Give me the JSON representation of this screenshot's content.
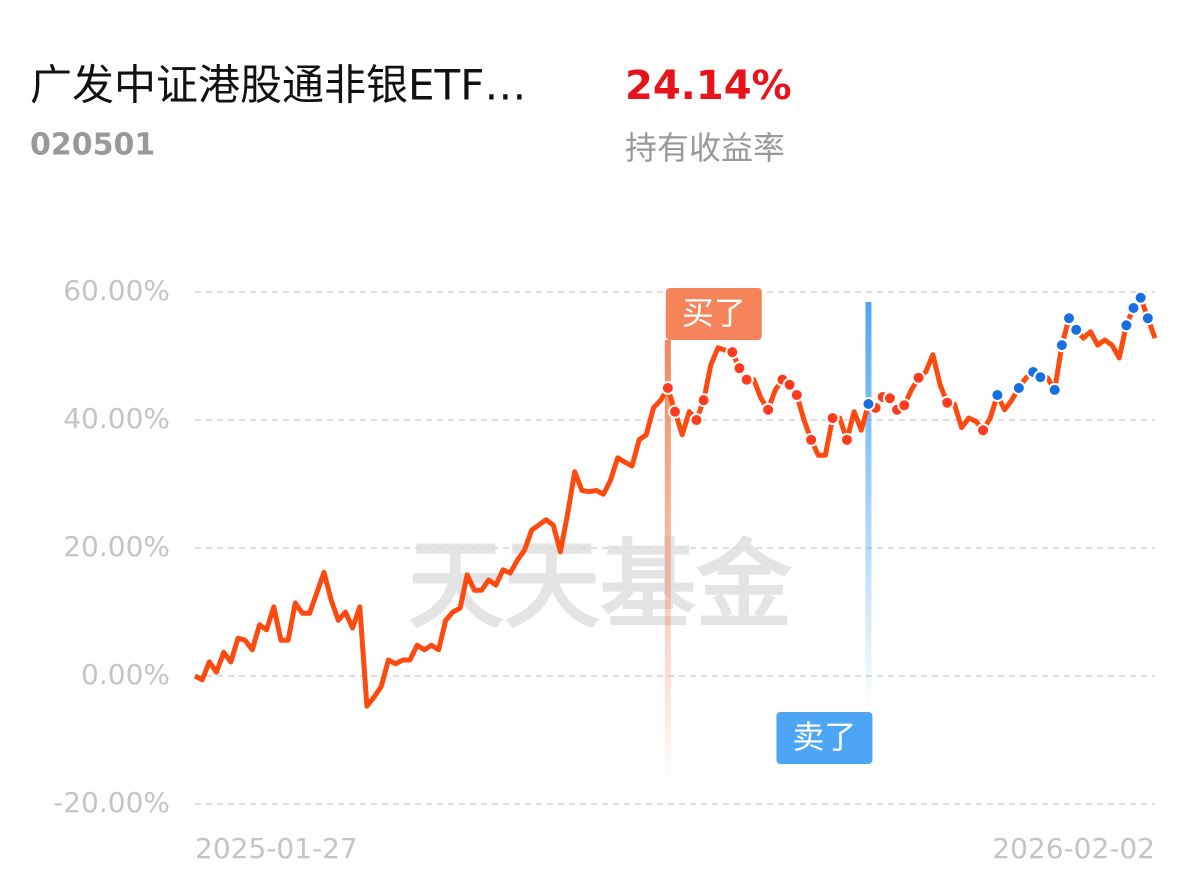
{
  "header": {
    "title": "广发中证港股通非银ETF…",
    "code": "020501",
    "return": "24.14%",
    "return_label": "持有收益率"
  },
  "chart_data": {
    "type": "line",
    "watermark": "天天基金",
    "categories": [
      "2025-01-27",
      null,
      null,
      null,
      null,
      null,
      null,
      null,
      null,
      null,
      null,
      null,
      null,
      null,
      null,
      null,
      null,
      null,
      null,
      null,
      null,
      null,
      null,
      null,
      null,
      null,
      null,
      null,
      null,
      null,
      null,
      null,
      null,
      null,
      null,
      null,
      null,
      null,
      null,
      null,
      null,
      null,
      null,
      null,
      null,
      null,
      null,
      null,
      null,
      null,
      null,
      null,
      null,
      null,
      null,
      null,
      null,
      null,
      null,
      null,
      null,
      null,
      null,
      null,
      null,
      null,
      null,
      null,
      null,
      null,
      null,
      null,
      null,
      null,
      null,
      null,
      null,
      null,
      null,
      null,
      null,
      null,
      null,
      null,
      null,
      null,
      null,
      null,
      null,
      null,
      null,
      null,
      null,
      null,
      null,
      null,
      null,
      null,
      null,
      null,
      null,
      null,
      null,
      null,
      null,
      null,
      null,
      null,
      null,
      null,
      null,
      null,
      null,
      null,
      null,
      null,
      null,
      null,
      null,
      null,
      null,
      null,
      null,
      null,
      null,
      null,
      null,
      null,
      null,
      null,
      null,
      null,
      null,
      null,
      "2026-02-02"
    ],
    "series": [
      {
        "color": "#ff4a0f",
        "values": [
          0,
          -0.6,
          2.2,
          0.6,
          3.7,
          2.2,
          5.9,
          5.6,
          4.1,
          8.0,
          7.2,
          10.8,
          5.6,
          5.6,
          11.4,
          9.8,
          9.8,
          13.0,
          16.2,
          11.9,
          8.7,
          10.0,
          7.5,
          10.8,
          -4.7,
          -3.3,
          -1.6,
          2.5,
          1.9,
          2.5,
          2.5,
          4.8,
          4.1,
          4.8,
          4.1,
          8.7,
          10.0,
          10.6,
          15.8,
          13.4,
          13.4,
          15.0,
          14.2,
          16.6,
          16.1,
          18.1,
          19.7,
          22.8,
          23.6,
          24.4,
          23.6,
          19.4,
          25.2,
          31.9,
          29.0,
          28.8,
          29.0,
          28.4,
          30.6,
          34.1,
          33.4,
          32.8,
          36.9,
          37.7,
          41.9,
          43.1,
          45.0,
          41.3,
          37.7,
          41.3,
          40.0,
          43.1,
          48.6,
          51.3,
          50.9,
          50.6,
          48.1,
          46.3,
          46.3,
          43.4,
          41.6,
          44.7,
          46.3,
          45.5,
          43.9,
          40.0,
          36.9,
          34.5,
          34.5,
          40.3,
          40.3,
          36.9,
          41.3,
          38.4,
          42.5,
          41.9,
          43.6,
          43.4,
          41.6,
          42.3,
          44.7,
          46.6,
          47.5,
          50.2,
          45.5,
          42.7,
          42.5,
          38.8,
          40.3,
          39.8,
          38.4,
          40.3,
          43.9,
          41.6,
          43.1,
          45.0,
          46.6,
          47.5,
          46.7,
          46.6,
          44.7,
          51.7,
          55.9,
          54.1,
          52.8,
          53.8,
          51.7,
          52.5,
          51.7,
          49.7,
          54.8,
          57.5,
          59.1,
          55.9,
          52.8
        ]
      }
    ],
    "ylim": [
      -20,
      60
    ],
    "yticks": [
      {
        "value": -20,
        "label": "-20.00%"
      },
      {
        "value": 0,
        "label": "0.00%"
      },
      {
        "value": 20,
        "label": "20.00%"
      },
      {
        "value": 40,
        "label": "40.00%"
      },
      {
        "value": 60,
        "label": "60.00%"
      }
    ],
    "grid": true,
    "annotations": [
      {
        "text": "买了",
        "index": 66,
        "color": "#f5845a"
      },
      {
        "text": "卖了",
        "index": 94,
        "color": "#4da6f5"
      }
    ],
    "buy_dots": {
      "color": "#ff3b1f",
      "indices": [
        66,
        67,
        70,
        71,
        75,
        76,
        77,
        80,
        82,
        83,
        84,
        86,
        89,
        91,
        95,
        96,
        97,
        98,
        99,
        101,
        105,
        110
      ]
    },
    "sell_dots": {
      "color": "#1a6fe0",
      "indices": [
        94,
        112,
        115,
        117,
        118,
        120,
        121,
        122,
        123,
        130,
        131,
        132,
        133
      ]
    }
  }
}
